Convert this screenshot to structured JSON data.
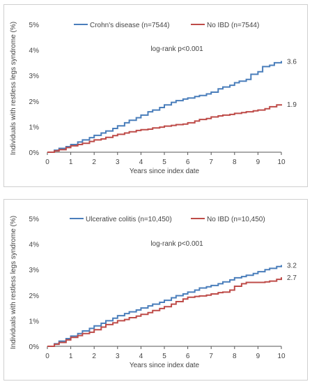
{
  "colors": {
    "blue": "#4a7ebb",
    "red": "#be4b48",
    "axis": "#555555"
  },
  "chart_data": [
    {
      "type": "line",
      "title": "",
      "xlabel": "Years since index date",
      "ylabel": "Individuals with restless legs syndrome (%)",
      "xlim": [
        0,
        10
      ],
      "ylim": [
        0,
        5
      ],
      "x_ticks": [
        "0",
        "1",
        "2",
        "3",
        "4",
        "5",
        "6",
        "7",
        "8",
        "9",
        "10"
      ],
      "y_ticks": [
        "0%",
        "1%",
        "2%",
        "3%",
        "4%",
        "5%"
      ],
      "annotation": "log-rank p<0.001",
      "legend_position": "top",
      "series": [
        {
          "name": "Crohn's disease (n=7544)",
          "color": "#4a7ebb",
          "end_label": "3.6",
          "x": [
            0,
            0.3,
            0.5,
            0.8,
            1.0,
            1.3,
            1.5,
            1.8,
            2.0,
            2.3,
            2.5,
            2.8,
            3.0,
            3.3,
            3.5,
            3.8,
            4.0,
            4.3,
            4.5,
            4.8,
            5.0,
            5.3,
            5.5,
            5.8,
            6.0,
            6.3,
            6.5,
            6.8,
            7.0,
            7.3,
            7.5,
            7.8,
            8.0,
            8.2,
            8.5,
            8.7,
            9.0,
            9.2,
            9.5,
            9.7,
            10.0
          ],
          "y": [
            0,
            0.08,
            0.15,
            0.22,
            0.3,
            0.4,
            0.48,
            0.57,
            0.66,
            0.75,
            0.83,
            0.93,
            1.03,
            1.15,
            1.25,
            1.35,
            1.45,
            1.58,
            1.65,
            1.75,
            1.85,
            1.95,
            2.02,
            2.08,
            2.12,
            2.18,
            2.22,
            2.28,
            2.35,
            2.48,
            2.55,
            2.62,
            2.72,
            2.78,
            2.85,
            3.05,
            3.15,
            3.35,
            3.4,
            3.5,
            3.57
          ]
        },
        {
          "name": "No IBD (n=7544)",
          "color": "#be4b48",
          "end_label": "1.9",
          "x": [
            0,
            0.3,
            0.5,
            0.8,
            1.0,
            1.3,
            1.5,
            1.8,
            2.0,
            2.3,
            2.5,
            2.8,
            3.0,
            3.3,
            3.5,
            3.8,
            4.0,
            4.3,
            4.5,
            4.8,
            5.0,
            5.3,
            5.5,
            5.8,
            6.0,
            6.3,
            6.5,
            6.8,
            7.0,
            7.3,
            7.5,
            7.8,
            8.0,
            8.3,
            8.5,
            8.8,
            9.0,
            9.3,
            9.5,
            9.8,
            10.0
          ],
          "y": [
            0,
            0.05,
            0.1,
            0.18,
            0.25,
            0.3,
            0.35,
            0.42,
            0.48,
            0.52,
            0.58,
            0.65,
            0.7,
            0.75,
            0.8,
            0.85,
            0.88,
            0.9,
            0.95,
            0.98,
            1.02,
            1.05,
            1.08,
            1.1,
            1.15,
            1.22,
            1.28,
            1.32,
            1.38,
            1.42,
            1.45,
            1.48,
            1.52,
            1.55,
            1.58,
            1.62,
            1.65,
            1.7,
            1.78,
            1.85,
            1.88
          ]
        }
      ]
    },
    {
      "type": "line",
      "title": "",
      "xlabel": "Years since index date",
      "ylabel": "Individuals with restless legs syndrome (%)",
      "xlim": [
        0,
        10
      ],
      "ylim": [
        0,
        5
      ],
      "x_ticks": [
        "0",
        "1",
        "2",
        "3",
        "4",
        "5",
        "6",
        "7",
        "8",
        "9",
        "10"
      ],
      "y_ticks": [
        "0%",
        "1%",
        "2%",
        "3%",
        "4%",
        "5%"
      ],
      "annotation": "log-rank p<0.001",
      "legend_position": "top",
      "series": [
        {
          "name": "Ulcerative colitis (n=10,450)",
          "color": "#4a7ebb",
          "end_label": "3.2",
          "x": [
            0,
            0.3,
            0.5,
            0.8,
            1.0,
            1.3,
            1.5,
            1.8,
            2.0,
            2.3,
            2.5,
            2.8,
            3.0,
            3.3,
            3.5,
            3.8,
            4.0,
            4.3,
            4.5,
            4.8,
            5.0,
            5.3,
            5.5,
            5.8,
            6.0,
            6.3,
            6.5,
            6.8,
            7.0,
            7.3,
            7.5,
            7.8,
            8.0,
            8.3,
            8.5,
            8.8,
            9.0,
            9.3,
            9.5,
            9.8,
            10.0
          ],
          "y": [
            0,
            0.1,
            0.2,
            0.3,
            0.4,
            0.5,
            0.6,
            0.7,
            0.8,
            0.9,
            1.0,
            1.1,
            1.2,
            1.28,
            1.35,
            1.42,
            1.5,
            1.58,
            1.65,
            1.72,
            1.8,
            1.9,
            1.98,
            2.05,
            2.12,
            2.2,
            2.28,
            2.33,
            2.38,
            2.45,
            2.52,
            2.6,
            2.68,
            2.73,
            2.78,
            2.85,
            2.92,
            3.0,
            3.05,
            3.12,
            3.18
          ]
        },
        {
          "name": "No IBD (n=10,450)",
          "color": "#be4b48",
          "end_label": "2.7",
          "x": [
            0,
            0.3,
            0.5,
            0.8,
            1.0,
            1.3,
            1.5,
            1.8,
            2.0,
            2.3,
            2.5,
            2.8,
            3.0,
            3.3,
            3.5,
            3.8,
            4.0,
            4.3,
            4.5,
            4.8,
            5.0,
            5.3,
            5.5,
            5.8,
            6.0,
            6.3,
            6.5,
            6.8,
            7.0,
            7.3,
            7.5,
            7.8,
            8.0,
            8.3,
            8.5,
            8.8,
            9.0,
            9.3,
            9.5,
            9.8,
            10.0
          ],
          "y": [
            0,
            0.08,
            0.15,
            0.25,
            0.35,
            0.42,
            0.5,
            0.55,
            0.65,
            0.75,
            0.85,
            0.92,
            1.0,
            1.05,
            1.12,
            1.18,
            1.25,
            1.32,
            1.4,
            1.48,
            1.55,
            1.65,
            1.75,
            1.85,
            1.92,
            1.95,
            1.97,
            2.0,
            2.05,
            2.1,
            2.12,
            2.2,
            2.35,
            2.45,
            2.5,
            2.5,
            2.5,
            2.52,
            2.55,
            2.62,
            2.7
          ]
        }
      ]
    }
  ]
}
